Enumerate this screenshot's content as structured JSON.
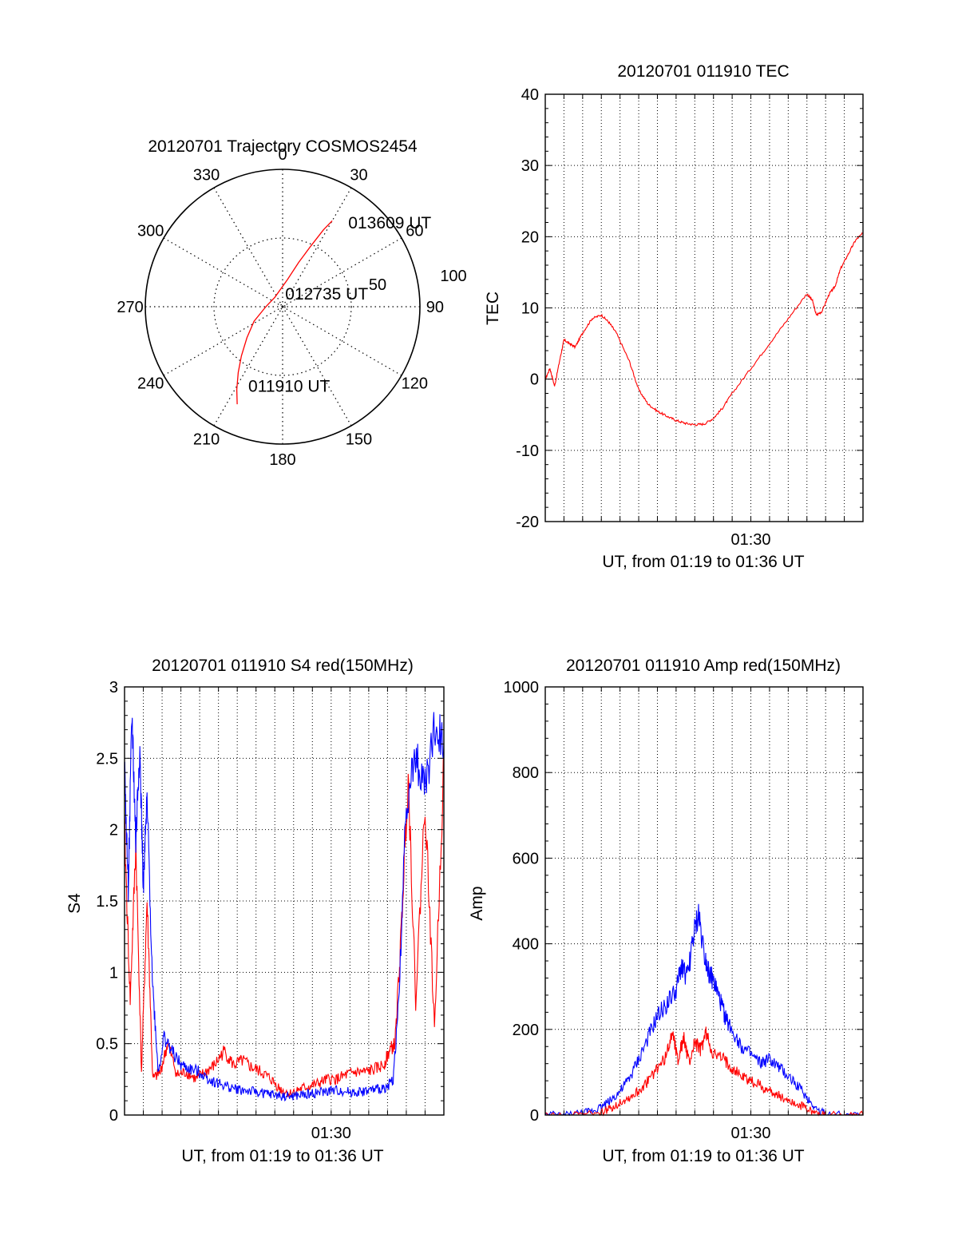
{
  "chart_data": [
    {
      "type": "polar",
      "title": "20120701 Trajectory COSMOS2454",
      "angle_labels": [
        "0",
        "30",
        "60",
        "90",
        "120",
        "150",
        "180",
        "210",
        "240",
        "270",
        "300",
        "330"
      ],
      "radial_ticks": [
        {
          "value": 50,
          "label": "50"
        },
        {
          "value": 100,
          "label": "100"
        }
      ],
      "rlim": [
        0,
        90
      ],
      "grid": true,
      "series": [
        {
          "color": "#ff0000",
          "points": [
            {
              "az": 205,
              "r": 70.5
            },
            {
              "az": 209,
              "r": 62
            },
            {
              "az": 214,
              "r": 52
            },
            {
              "az": 220,
              "r": 42
            },
            {
              "az": 229,
              "r": 31
            },
            {
              "az": 243,
              "r": 21
            },
            {
              "az": 270,
              "r": 11
            },
            {
              "az": 320,
              "r": 8
            },
            {
              "az": 10,
              "r": 18
            },
            {
              "az": 20,
              "r": 31
            },
            {
              "az": 25,
              "r": 44
            },
            {
              "az": 28,
              "r": 57
            },
            {
              "az": 30,
              "r": 65
            }
          ]
        }
      ],
      "annotations": [
        {
          "text": "011910 UT",
          "az": 202,
          "r": 60
        },
        {
          "text": "012735 UT",
          "az": 20,
          "r": 5
        },
        {
          "text": "013609 UT",
          "az": 40,
          "r": 67
        }
      ]
    },
    {
      "type": "line",
      "title": "20120701 011910 TEC",
      "xlabel": "UT, from 01:19 to 01:36 UT",
      "ylabel": "TEC",
      "xlim": [
        0,
        17
      ],
      "ylim": [
        -20,
        40
      ],
      "yticks": [
        -20,
        -10,
        0,
        10,
        20,
        30,
        40
      ],
      "xticks": [
        {
          "value": 11,
          "label": "01:30"
        }
      ],
      "grid": true,
      "series": [
        {
          "color": "#ff0000",
          "x": [
            0,
            0.25,
            0.5,
            0.8,
            1.0,
            1.3,
            1.6,
            2.0,
            2.5,
            3.0,
            3.4,
            3.8,
            4.5,
            5.0,
            5.5,
            6.0,
            6.5,
            7.0,
            7.5,
            8.0,
            8.5,
            9.0,
            9.5,
            10.0,
            11.0,
            12.0,
            13.0,
            14.0,
            14.3,
            14.5,
            14.8,
            15.2,
            15.5,
            15.8,
            16.2,
            16.6,
            17.0
          ],
          "y": [
            0,
            1.5,
            -1,
            3,
            5.5,
            5,
            4.5,
            6.5,
            8.5,
            9,
            8,
            6.5,
            2.5,
            -1.5,
            -3.5,
            -4.5,
            -5.2,
            -5.8,
            -6.2,
            -6.4,
            -6.3,
            -5.5,
            -4,
            -2,
            1.5,
            5,
            8.5,
            12,
            11,
            9,
            9.5,
            12,
            13,
            15.5,
            17.5,
            19.5,
            20.5
          ]
        }
      ]
    },
    {
      "type": "line",
      "title": "20120701 011910 S4 red(150MHz)",
      "xlabel": "UT, from 01:19 to 01:36 UT",
      "ylabel": "S4",
      "xlim": [
        0,
        17
      ],
      "ylim": [
        0,
        3
      ],
      "yticks": [
        0,
        0.5,
        1,
        1.5,
        2,
        2.5,
        3
      ],
      "ytick_labels": [
        "0",
        "0.5",
        "1",
        "1.5",
        "2",
        "2.5",
        "3"
      ],
      "xticks": [
        {
          "value": 11,
          "label": "01:30"
        }
      ],
      "grid": true,
      "series": [
        {
          "color": "#ff0000",
          "x": [
            0,
            0.3,
            0.6,
            0.9,
            1.2,
            1.5,
            1.9,
            2.3,
            2.8,
            3.3,
            3.8,
            4.3,
            4.8,
            5.3,
            5.8,
            6.3,
            6.8,
            7.3,
            7.8,
            8.3,
            8.8,
            9.3,
            9.8,
            10.3,
            10.8,
            11.3,
            11.8,
            12.3,
            12.8,
            13.3,
            13.8,
            14.1,
            14.4,
            14.7,
            15.1,
            15.5,
            16.0,
            16.5,
            17.0
          ],
          "y": [
            2.0,
            0.8,
            1.9,
            0.3,
            1.5,
            0.25,
            0.3,
            0.5,
            0.28,
            0.3,
            0.25,
            0.3,
            0.35,
            0.45,
            0.35,
            0.38,
            0.33,
            0.3,
            0.25,
            0.18,
            0.15,
            0.18,
            0.2,
            0.22,
            0.25,
            0.25,
            0.28,
            0.3,
            0.3,
            0.32,
            0.35,
            0.45,
            0.5,
            1.2,
            2.4,
            0.8,
            2.2,
            0.6,
            2.5
          ]
        },
        {
          "color": "#0000ff",
          "x": [
            0,
            0.2,
            0.4,
            0.6,
            0.8,
            1.0,
            1.2,
            1.5,
            1.8,
            2.1,
            2.5,
            3.0,
            3.5,
            4.0,
            4.5,
            5.0,
            5.5,
            6.0,
            6.5,
            7.0,
            7.5,
            8.0,
            8.5,
            9.0,
            9.5,
            10.0,
            10.5,
            11.0,
            11.5,
            12.0,
            12.5,
            13.0,
            13.5,
            14.0,
            14.3,
            14.6,
            15.0,
            15.5,
            16.0,
            16.5,
            17.0
          ],
          "y": [
            2.4,
            1.6,
            2.8,
            1.9,
            2.6,
            1.6,
            2.2,
            0.9,
            0.3,
            0.55,
            0.45,
            0.35,
            0.32,
            0.3,
            0.25,
            0.22,
            0.2,
            0.18,
            0.17,
            0.16,
            0.15,
            0.14,
            0.13,
            0.13,
            0.14,
            0.15,
            0.16,
            0.17,
            0.17,
            0.16,
            0.16,
            0.17,
            0.18,
            0.2,
            0.25,
            0.8,
            2.2,
            2.5,
            2.3,
            2.7,
            2.6
          ]
        }
      ]
    },
    {
      "type": "line",
      "title": "20120701 011910 Amp red(150MHz)",
      "xlabel": "UT, from 01:19 to 01:36 UT",
      "ylabel": "Amp",
      "xlim": [
        0,
        17
      ],
      "ylim": [
        0,
        1000
      ],
      "yticks": [
        0,
        200,
        400,
        600,
        800,
        1000
      ],
      "xticks": [
        {
          "value": 11,
          "label": "01:30"
        }
      ],
      "grid": true,
      "series": [
        {
          "color": "#0000ff",
          "x": [
            0,
            1,
            2,
            2.5,
            3,
            3.5,
            4,
            4.5,
            5,
            5.5,
            6,
            6.5,
            7,
            7.3,
            7.6,
            7.9,
            8.2,
            8.5,
            8.8,
            9.1,
            9.4,
            9.7,
            10,
            10.5,
            11,
            11.5,
            12,
            12.5,
            13,
            13.5,
            14,
            14.5,
            15,
            16,
            17
          ],
          "y": [
            0,
            0,
            5,
            10,
            20,
            35,
            55,
            85,
            130,
            180,
            230,
            260,
            290,
            350,
            320,
            410,
            470,
            380,
            330,
            300,
            260,
            220,
            200,
            160,
            140,
            120,
            130,
            110,
            90,
            70,
            40,
            15,
            3,
            0,
            0
          ]
        },
        {
          "color": "#ff0000",
          "x": [
            0,
            1,
            2,
            3,
            3.5,
            4,
            4.5,
            5,
            5.5,
            6,
            6.5,
            6.8,
            7.1,
            7.4,
            7.7,
            8,
            8.3,
            8.6,
            9,
            9.5,
            10,
            10.5,
            11,
            11.5,
            12,
            12.5,
            13,
            13.5,
            14,
            14.5,
            15,
            16,
            17
          ],
          "y": [
            0,
            0,
            0,
            5,
            15,
            30,
            40,
            55,
            80,
            110,
            140,
            200,
            130,
            180,
            120,
            170,
            150,
            190,
            140,
            130,
            110,
            90,
            80,
            70,
            55,
            45,
            35,
            25,
            15,
            5,
            0,
            0,
            0
          ]
        }
      ]
    }
  ]
}
